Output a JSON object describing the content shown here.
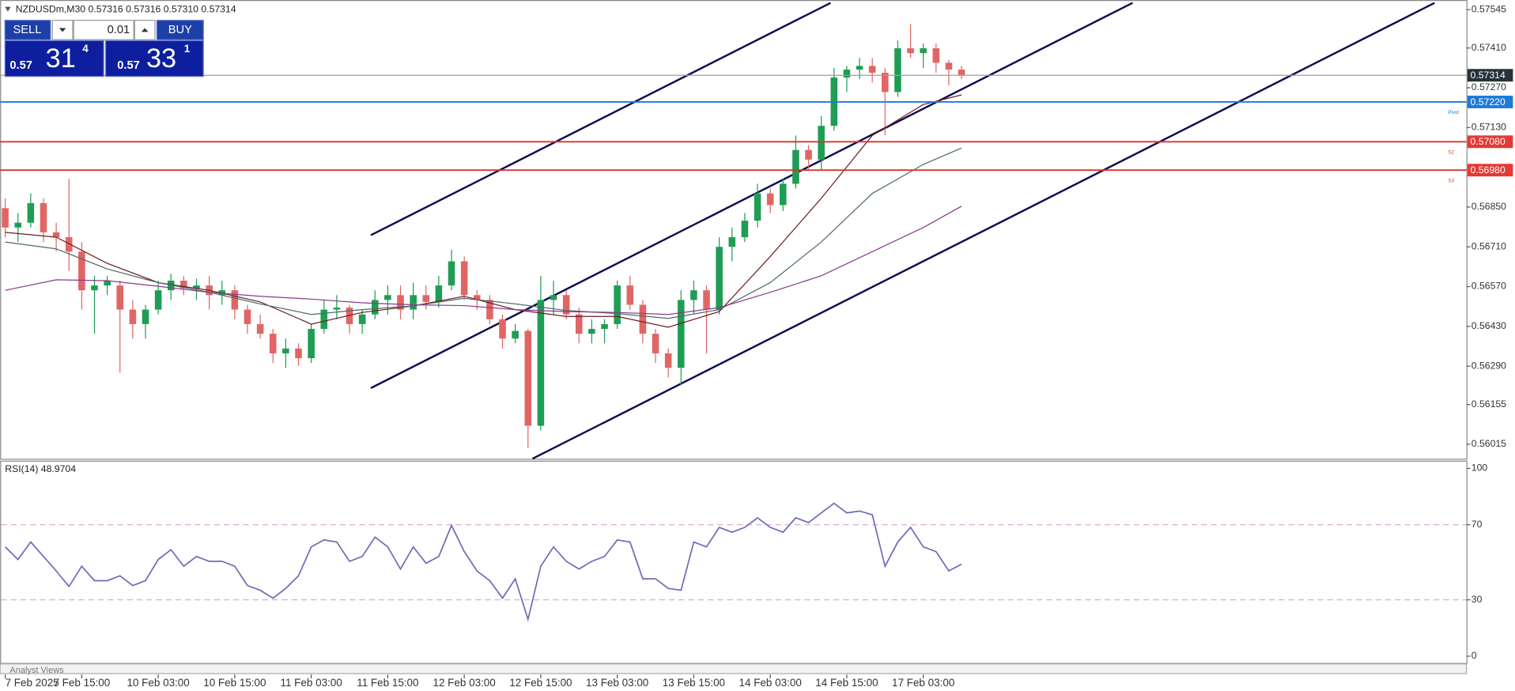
{
  "header": {
    "title": "NZDUSDm,M30  0.57316 0.57316 0.57310 0.57314"
  },
  "trade_panel": {
    "sell": "SELL",
    "buy": "BUY",
    "volume": "0.01",
    "bid": {
      "big": "0.57",
      "main": "31",
      "small": "4"
    },
    "ask": {
      "big": "0.57",
      "main": "33",
      "small": "1"
    }
  },
  "footer": {
    "tab": "Analyst Views"
  },
  "chart_data": [
    {
      "type": "candlestick",
      "up_color": "#1f9d55",
      "down_color": "#e06666",
      "xlim": [
        -0.4,
        114.6
      ],
      "xticks": [
        {
          "value": 0,
          "label": "7 Feb 2025"
        },
        {
          "value": 6,
          "label": "7 Feb 15:00"
        },
        {
          "value": 12,
          "label": "10 Feb 03:00"
        },
        {
          "value": 18,
          "label": "10 Feb 15:00"
        },
        {
          "value": 24,
          "label": "11 Feb 03:00"
        },
        {
          "value": 30,
          "label": "11 Feb 15:00"
        },
        {
          "value": 36,
          "label": "12 Feb 03:00"
        },
        {
          "value": 42,
          "label": "12 Feb 15:00"
        },
        {
          "value": 48,
          "label": "13 Feb 03:00"
        },
        {
          "value": 54,
          "label": "13 Feb 15:00"
        },
        {
          "value": 60,
          "label": "14 Feb 03:00"
        },
        {
          "value": 66,
          "label": "14 Feb 15:00"
        },
        {
          "value": 72,
          "label": "17 Feb 03:00"
        }
      ],
      "ylim": [
        0.55964,
        0.57579
      ],
      "yticks": [
        {
          "value": 0.57545,
          "label": "0.57545"
        },
        {
          "value": 0.5741,
          "label": "0.57410"
        },
        {
          "value": 0.5727,
          "label": "0.57270"
        },
        {
          "value": 0.5713,
          "label": "0.57130"
        },
        {
          "value": 0.5685,
          "label": "0.56850"
        },
        {
          "value": 0.5671,
          "label": "0.56710"
        },
        {
          "value": 0.5657,
          "label": "0.56570"
        },
        {
          "value": 0.5643,
          "label": "0.56430"
        },
        {
          "value": 0.5629,
          "label": "0.56290"
        },
        {
          "value": 0.56155,
          "label": "0.56155"
        },
        {
          "value": 0.56015,
          "label": "0.56015"
        }
      ],
      "x": [
        0,
        1,
        2,
        3,
        4,
        5,
        6,
        7,
        8,
        9,
        10,
        11,
        12,
        13,
        14,
        15,
        16,
        17,
        18,
        19,
        20,
        21,
        22,
        23,
        24,
        25,
        26,
        27,
        28,
        29,
        30,
        31,
        32,
        33,
        34,
        35,
        36,
        37,
        38,
        39,
        40,
        41,
        42,
        43,
        44,
        45,
        46,
        47,
        48,
        49,
        50,
        51,
        52,
        53,
        54,
        55,
        56,
        57,
        58,
        59,
        60,
        61,
        62,
        63,
        64,
        65,
        66,
        67,
        68,
        69,
        70,
        71,
        72,
        73,
        74,
        75
      ],
      "open": [
        0.56846,
        0.56778,
        0.56795,
        0.56864,
        0.56761,
        0.56744,
        0.56693,
        0.56557,
        0.56574,
        0.56574,
        0.56489,
        0.56438,
        0.56489,
        0.56557,
        0.56591,
        0.56564,
        0.56574,
        0.5654,
        0.56557,
        0.56489,
        0.56438,
        0.56404,
        0.56335,
        0.56352,
        0.56318,
        0.56421,
        0.56489,
        0.56496,
        0.56438,
        0.56472,
        0.56523,
        0.5654,
        0.56489,
        0.5654,
        0.56516,
        0.56574,
        0.56659,
        0.5654,
        0.56523,
        0.56455,
        0.56387,
        0.56414,
        0.5608,
        0.56523,
        0.5654,
        0.56472,
        0.56404,
        0.56421,
        0.56438,
        0.56574,
        0.56506,
        0.56404,
        0.56335,
        0.56284,
        0.56523,
        0.56557,
        0.56489,
        0.5671,
        0.56744,
        0.56802,
        0.56898,
        0.56857,
        0.56932,
        0.57051,
        0.57017,
        0.57136,
        0.57306,
        0.57334,
        0.57347,
        0.57323,
        0.57255,
        0.57409,
        0.57392,
        0.57409,
        0.57358,
        0.57334
      ],
      "high": [
        0.56881,
        0.56829,
        0.56898,
        0.56881,
        0.56795,
        0.56949,
        0.56727,
        0.56608,
        0.56608,
        0.56591,
        0.56523,
        0.56506,
        0.56591,
        0.56615,
        0.56608,
        0.56598,
        0.56608,
        0.56591,
        0.56574,
        0.56506,
        0.56472,
        0.56421,
        0.56387,
        0.5637,
        0.56438,
        0.56523,
        0.5654,
        0.56506,
        0.56489,
        0.56557,
        0.56574,
        0.56574,
        0.56584,
        0.56574,
        0.56608,
        0.567,
        0.56676,
        0.56557,
        0.5654,
        0.56472,
        0.56438,
        0.56421,
        0.56608,
        0.56591,
        0.56557,
        0.56496,
        0.56455,
        0.56455,
        0.56591,
        0.56608,
        0.56523,
        0.56421,
        0.56352,
        0.56557,
        0.56591,
        0.56574,
        0.56744,
        0.56778,
        0.56829,
        0.56932,
        0.56915,
        0.56949,
        0.57102,
        0.57068,
        0.5717,
        0.5734,
        0.57347,
        0.57375,
        0.57375,
        0.5734,
        0.57436,
        0.57494,
        0.57426,
        0.57426,
        0.57368,
        0.57347
      ],
      "low": [
        0.56744,
        0.56727,
        0.56778,
        0.56727,
        0.56693,
        0.56625,
        0.56489,
        0.56404,
        0.5654,
        0.56267,
        0.56387,
        0.56387,
        0.56472,
        0.56523,
        0.5654,
        0.56523,
        0.56489,
        0.56506,
        0.56455,
        0.56404,
        0.56387,
        0.56301,
        0.56284,
        0.56291,
        0.56301,
        0.56404,
        0.56455,
        0.56404,
        0.56404,
        0.56455,
        0.56472,
        0.56455,
        0.56455,
        0.56489,
        0.56496,
        0.56557,
        0.56523,
        0.56489,
        0.56438,
        0.56352,
        0.5637,
        0.56002,
        0.56063,
        0.56472,
        0.56455,
        0.5637,
        0.5637,
        0.5637,
        0.56421,
        0.56489,
        0.5637,
        0.56301,
        0.5625,
        0.56223,
        0.56472,
        0.56335,
        0.56472,
        0.56659,
        0.56727,
        0.56778,
        0.56829,
        0.56836,
        0.56915,
        0.56983,
        0.56983,
        0.57119,
        0.57255,
        0.573,
        0.57289,
        0.57102,
        0.57238,
        0.57375,
        0.5734,
        0.57323,
        0.57279,
        0.573
      ],
      "close": [
        0.56778,
        0.56795,
        0.56864,
        0.56761,
        0.56744,
        0.56693,
        0.56557,
        0.56574,
        0.56591,
        0.56489,
        0.56438,
        0.56489,
        0.56557,
        0.56591,
        0.56564,
        0.56574,
        0.5654,
        0.56557,
        0.56489,
        0.56438,
        0.56404,
        0.56335,
        0.56352,
        0.56318,
        0.56421,
        0.56489,
        0.56496,
        0.56438,
        0.56472,
        0.56523,
        0.5654,
        0.56489,
        0.5654,
        0.56516,
        0.56574,
        0.56659,
        0.5654,
        0.56523,
        0.56455,
        0.56387,
        0.56414,
        0.5608,
        0.56523,
        0.5654,
        0.56472,
        0.56404,
        0.56421,
        0.56438,
        0.56574,
        0.56506,
        0.56404,
        0.56335,
        0.56284,
        0.56523,
        0.56557,
        0.56489,
        0.5671,
        0.56744,
        0.56802,
        0.56898,
        0.56857,
        0.56932,
        0.57051,
        0.57017,
        0.57136,
        0.57306,
        0.57334,
        0.57347,
        0.57323,
        0.57255,
        0.57409,
        0.57392,
        0.57409,
        0.57358,
        0.57334,
        0.57314
      ],
      "moving_averages": [
        {
          "color": "#6d1f1f",
          "x": [
            0,
            4,
            8,
            12,
            16,
            20,
            24,
            28,
            32,
            36,
            40,
            44,
            48,
            52,
            56,
            60,
            64,
            68,
            72,
            75
          ],
          "values": [
            0.56761,
            0.56744,
            0.56652,
            0.56584,
            0.56557,
            0.56516,
            0.56438,
            0.56479,
            0.56502,
            0.56536,
            0.56489,
            0.56465,
            0.56465,
            0.56427,
            0.56482,
            0.56676,
            0.56881,
            0.57102,
            0.57211,
            0.57245
          ]
        },
        {
          "color": "#4f6a6a",
          "x": [
            0,
            4,
            8,
            12,
            16,
            20,
            24,
            28,
            32,
            36,
            40,
            44,
            48,
            52,
            56,
            60,
            64,
            68,
            72,
            75
          ],
          "values": [
            0.56727,
            0.56703,
            0.56632,
            0.56584,
            0.5655,
            0.56509,
            0.56472,
            0.56489,
            0.56502,
            0.56529,
            0.56509,
            0.56486,
            0.56475,
            0.56458,
            0.56489,
            0.56584,
            0.56727,
            0.56898,
            0.57,
            0.57058
          ]
        },
        {
          "color": "#8a3a8a",
          "x": [
            0,
            4,
            8,
            12,
            16,
            20,
            24,
            28,
            32,
            36,
            40,
            44,
            48,
            52,
            56,
            60,
            64,
            68,
            72,
            75
          ],
          "values": [
            0.56557,
            0.56594,
            0.56591,
            0.56571,
            0.5655,
            0.56536,
            0.56526,
            0.56513,
            0.56506,
            0.56503,
            0.56489,
            0.56482,
            0.56479,
            0.56472,
            0.56496,
            0.5655,
            0.56608,
            0.56693,
            0.56778,
            0.56853
          ]
        }
      ],
      "levels": [
        {
          "value": 0.57314,
          "label": "0.57314",
          "color": "#9e9e9e",
          "box": "#263238"
        },
        {
          "value": 0.5722,
          "label": "0.57220",
          "name": "Pivot",
          "color": "#1e7bd6",
          "box": "#1e7bd6"
        },
        {
          "value": 0.5708,
          "label": "0.57080",
          "name": "S2",
          "color": "#d9342b",
          "box": "#e53935"
        },
        {
          "value": 0.5698,
          "label": "0.56980",
          "name": "S3",
          "color": "#d9342b",
          "box": "#e53935"
        }
      ]
    },
    {
      "type": "line",
      "title": "RSI(14) 48.9704",
      "color": "#7468b8",
      "xlim": [
        -0.4,
        114.6
      ],
      "ylim": [
        -3.6,
        103.6
      ],
      "yticks": [
        100,
        70,
        30,
        0
      ],
      "levels": [
        70,
        30
      ],
      "x": [
        0,
        1,
        2,
        3,
        4,
        5,
        6,
        7,
        8,
        9,
        10,
        11,
        12,
        13,
        14,
        15,
        16,
        17,
        18,
        19,
        20,
        21,
        22,
        23,
        24,
        25,
        26,
        27,
        28,
        29,
        30,
        31,
        32,
        33,
        34,
        35,
        36,
        37,
        38,
        39,
        40,
        41,
        42,
        43,
        44,
        45,
        46,
        47,
        48,
        49,
        50,
        51,
        52,
        53,
        54,
        55,
        56,
        57,
        58,
        59,
        60,
        61,
        62,
        63,
        64,
        65,
        66,
        67,
        68,
        69,
        70,
        71,
        72,
        73,
        74,
        75
      ],
      "values": [
        58.2,
        51.5,
        60.8,
        53.1,
        45.4,
        37.1,
        47.9,
        40.2,
        40.2,
        42.8,
        37.6,
        40.2,
        51.5,
        56.7,
        47.9,
        53.1,
        50.5,
        50.5,
        47.9,
        37.6,
        35.1,
        30.9,
        36.1,
        42.8,
        58.2,
        61.9,
        60.8,
        50.5,
        53.1,
        63.4,
        58.2,
        46.4,
        58.2,
        49.5,
        53.1,
        69.6,
        55.7,
        45.4,
        40.2,
        30.9,
        41.2,
        19.6,
        47.9,
        58.2,
        50.5,
        46.4,
        50.5,
        53.1,
        61.9,
        60.8,
        41.2,
        41.2,
        36.1,
        35.1,
        60.8,
        58.2,
        68.6,
        66.0,
        68.6,
        73.7,
        68.6,
        66.0,
        73.7,
        71.1,
        76.3,
        81.4,
        76.3,
        77.3,
        75.3,
        47.9,
        60.8,
        68.6,
        58.2,
        55.7,
        45.4,
        48.9704
      ]
    }
  ]
}
